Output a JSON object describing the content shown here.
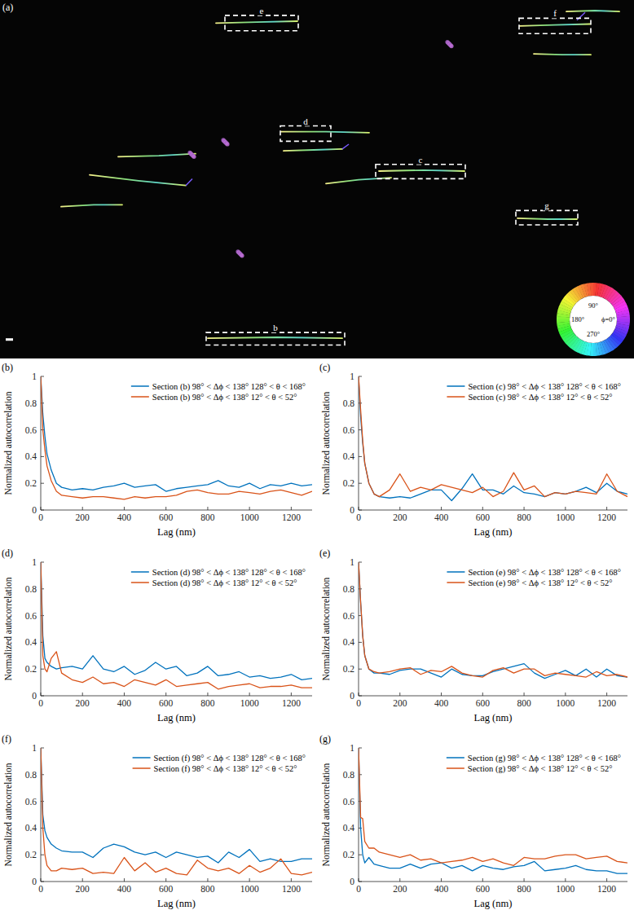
{
  "image_panel": {
    "label": "(a)",
    "boxes": [
      {
        "label": "b"
      },
      {
        "label": "c"
      },
      {
        "label": "d"
      },
      {
        "label": "e"
      },
      {
        "label": "f"
      },
      {
        "label": "g"
      }
    ],
    "wheel_labels": [
      "90°",
      "180°",
      "ϕ=0°",
      "270°"
    ]
  },
  "chart_data": [
    {
      "type": "line",
      "title": "(b)",
      "x_label": "Lag (nm)",
      "y_label": "Normalized autocorrelation",
      "x": [
        0,
        10,
        20,
        30,
        50,
        75,
        100,
        150,
        200,
        250,
        300,
        350,
        400,
        450,
        500,
        550,
        600,
        650,
        700,
        750,
        800,
        850,
        900,
        950,
        1000,
        1050,
        1100,
        1150,
        1200,
        1250,
        1300
      ],
      "series": [
        {
          "name": "Section (b) 98° < Δϕ < 138° 128° < θ < 168°",
          "color": "#0072bd",
          "values": [
            1,
            0.72,
            0.55,
            0.42,
            0.3,
            0.2,
            0.17,
            0.15,
            0.16,
            0.15,
            0.17,
            0.18,
            0.2,
            0.17,
            0.18,
            0.19,
            0.14,
            0.16,
            0.17,
            0.18,
            0.19,
            0.22,
            0.18,
            0.17,
            0.2,
            0.16,
            0.19,
            0.18,
            0.2,
            0.18,
            0.19
          ]
        },
        {
          "name": "Section (b) 98° < Δϕ < 138° 12° < θ < 52°",
          "color": "#d95319",
          "values": [
            1,
            0.6,
            0.45,
            0.33,
            0.22,
            0.14,
            0.11,
            0.1,
            0.09,
            0.1,
            0.1,
            0.09,
            0.08,
            0.1,
            0.09,
            0.1,
            0.1,
            0.11,
            0.14,
            0.15,
            0.13,
            0.12,
            0.12,
            0.14,
            0.13,
            0.12,
            0.14,
            0.15,
            0.13,
            0.11,
            0.14
          ]
        }
      ],
      "xlim": [
        0,
        1300
      ],
      "xticks": [
        0,
        200,
        400,
        600,
        800,
        1000,
        1200
      ],
      "ylim": [
        0,
        1
      ],
      "yticks": [
        0,
        0.2,
        0.4,
        0.6,
        0.8,
        1
      ],
      "legend": "northeast"
    },
    {
      "type": "line",
      "title": "(c)",
      "x_label": "Lag (nm)",
      "y_label": "Normalized autocorrelation",
      "x": [
        0,
        10,
        20,
        30,
        50,
        75,
        100,
        150,
        200,
        250,
        300,
        350,
        400,
        450,
        500,
        550,
        600,
        650,
        700,
        750,
        800,
        850,
        900,
        950,
        1000,
        1050,
        1100,
        1150,
        1200,
        1250,
        1300
      ],
      "series": [
        {
          "name": "Section (c) 98° < Δϕ < 138° 128° < θ < 168°",
          "color": "#0072bd",
          "values": [
            1,
            0.7,
            0.5,
            0.35,
            0.2,
            0.12,
            0.1,
            0.09,
            0.1,
            0.09,
            0.12,
            0.15,
            0.15,
            0.07,
            0.16,
            0.27,
            0.15,
            0.15,
            0.12,
            0.18,
            0.13,
            0.12,
            0.1,
            0.13,
            0.12,
            0.14,
            0.17,
            0.13,
            0.2,
            0.14,
            0.12
          ]
        },
        {
          "name": "Section (c) 98° < Δϕ < 138° 12° < θ < 52°",
          "color": "#d95319",
          "values": [
            1,
            0.75,
            0.52,
            0.35,
            0.2,
            0.12,
            0.1,
            0.15,
            0.27,
            0.14,
            0.17,
            0.15,
            0.19,
            0.17,
            0.15,
            0.13,
            0.17,
            0.1,
            0.14,
            0.28,
            0.15,
            0.18,
            0.1,
            0.13,
            0.12,
            0.14,
            0.13,
            0.12,
            0.27,
            0.14,
            0.1
          ]
        }
      ],
      "xlim": [
        0,
        1300
      ],
      "xticks": [
        0,
        200,
        400,
        600,
        800,
        1000,
        1200
      ],
      "ylim": [
        0,
        1
      ],
      "yticks": [
        0,
        0.2,
        0.4,
        0.6,
        0.8,
        1
      ],
      "legend": "northeast"
    },
    {
      "type": "line",
      "title": "(d)",
      "x_label": "Lag (nm)",
      "y_label": "Normalized autocorrelation",
      "x": [
        0,
        10,
        20,
        30,
        50,
        75,
        100,
        150,
        200,
        250,
        300,
        350,
        400,
        450,
        500,
        550,
        600,
        650,
        700,
        750,
        800,
        850,
        900,
        950,
        1000,
        1050,
        1100,
        1150,
        1200,
        1250,
        1300
      ],
      "series": [
        {
          "name": "Section (d) 98° < Δϕ < 138° 128° < θ < 168°",
          "color": "#0072bd",
          "values": [
            1,
            0.45,
            0.28,
            0.25,
            0.22,
            0.2,
            0.21,
            0.22,
            0.2,
            0.3,
            0.2,
            0.18,
            0.22,
            0.16,
            0.19,
            0.25,
            0.2,
            0.22,
            0.15,
            0.17,
            0.22,
            0.15,
            0.16,
            0.18,
            0.14,
            0.15,
            0.13,
            0.14,
            0.16,
            0.12,
            0.13
          ]
        },
        {
          "name": "Section (d) 98° < Δϕ < 138° 12° < θ < 52°",
          "color": "#d95319",
          "values": [
            1,
            0.3,
            0.2,
            0.18,
            0.28,
            0.33,
            0.17,
            0.12,
            0.1,
            0.14,
            0.09,
            0.1,
            0.07,
            0.12,
            0.1,
            0.08,
            0.12,
            0.07,
            0.08,
            0.09,
            0.1,
            0.05,
            0.07,
            0.08,
            0.09,
            0.06,
            0.07,
            0.07,
            0.08,
            0.06,
            0.06
          ]
        }
      ],
      "xlim": [
        0,
        1300
      ],
      "xticks": [
        0,
        200,
        400,
        600,
        800,
        1000,
        1200
      ],
      "ylim": [
        0,
        1
      ],
      "yticks": [
        0,
        0.2,
        0.4,
        0.6,
        0.8,
        1
      ],
      "legend": "northeast"
    },
    {
      "type": "line",
      "title": "(e)",
      "x_label": "Lag (nm)",
      "y_label": "Normalized autocorrelation",
      "x": [
        0,
        10,
        20,
        30,
        50,
        75,
        100,
        150,
        200,
        250,
        300,
        350,
        400,
        450,
        500,
        550,
        600,
        650,
        700,
        750,
        800,
        850,
        900,
        950,
        1000,
        1050,
        1100,
        1150,
        1200,
        1250,
        1300
      ],
      "series": [
        {
          "name": "Section (e) 98° < Δϕ < 138° 128° < θ < 168°",
          "color": "#0072bd",
          "values": [
            1,
            0.7,
            0.45,
            0.3,
            0.2,
            0.17,
            0.17,
            0.16,
            0.19,
            0.2,
            0.2,
            0.17,
            0.14,
            0.2,
            0.16,
            0.15,
            0.15,
            0.18,
            0.2,
            0.22,
            0.24,
            0.17,
            0.13,
            0.16,
            0.19,
            0.15,
            0.2,
            0.14,
            0.2,
            0.15,
            0.14
          ]
        },
        {
          "name": "Section (e) 98° < Δϕ < 138° 12° < θ < 52°",
          "color": "#d95319",
          "values": [
            1,
            0.7,
            0.45,
            0.3,
            0.2,
            0.18,
            0.17,
            0.18,
            0.2,
            0.21,
            0.16,
            0.19,
            0.18,
            0.22,
            0.17,
            0.15,
            0.14,
            0.19,
            0.21,
            0.17,
            0.2,
            0.2,
            0.15,
            0.17,
            0.16,
            0.15,
            0.14,
            0.18,
            0.15,
            0.16,
            0.14
          ]
        }
      ],
      "xlim": [
        0,
        1300
      ],
      "xticks": [
        0,
        200,
        400,
        600,
        800,
        1000,
        1200
      ],
      "ylim": [
        0,
        1
      ],
      "yticks": [
        0,
        0.2,
        0.4,
        0.6,
        0.8,
        1
      ],
      "legend": "northeast"
    },
    {
      "type": "line",
      "title": "(f)",
      "x_label": "Lag (nm)",
      "y_label": "Normalized autocorrelation",
      "x": [
        0,
        10,
        20,
        30,
        50,
        75,
        100,
        150,
        200,
        250,
        300,
        350,
        400,
        450,
        500,
        550,
        600,
        650,
        700,
        750,
        800,
        850,
        900,
        950,
        1000,
        1050,
        1100,
        1150,
        1200,
        1250,
        1300
      ],
      "series": [
        {
          "name": "Section (f) 98° < Δϕ < 138° 128° < θ < 168°",
          "color": "#0072bd",
          "values": [
            1,
            0.5,
            0.38,
            0.33,
            0.28,
            0.25,
            0.23,
            0.22,
            0.22,
            0.18,
            0.25,
            0.28,
            0.26,
            0.22,
            0.2,
            0.22,
            0.18,
            0.22,
            0.2,
            0.18,
            0.19,
            0.14,
            0.22,
            0.18,
            0.24,
            0.15,
            0.17,
            0.15,
            0.15,
            0.17,
            0.17
          ]
        },
        {
          "name": "Section (f) 98° < Δϕ < 138° 12° < θ < 52°",
          "color": "#d95319",
          "values": [
            1,
            0.4,
            0.2,
            0.12,
            0.08,
            0.08,
            0.1,
            0.09,
            0.1,
            0.06,
            0.07,
            0.06,
            0.18,
            0.08,
            0.14,
            0.07,
            0.1,
            0.06,
            0.05,
            0.16,
            0.1,
            0.08,
            0.1,
            0.06,
            0.12,
            0.07,
            0.1,
            0.17,
            0.06,
            0.05,
            0.07
          ]
        }
      ],
      "xlim": [
        0,
        1300
      ],
      "xticks": [
        0,
        200,
        400,
        600,
        800,
        1000,
        1200
      ],
      "ylim": [
        0,
        1
      ],
      "yticks": [
        0,
        0.2,
        0.4,
        0.6,
        0.8,
        1
      ],
      "legend": "northeast"
    },
    {
      "type": "line",
      "title": "(g)",
      "x_label": "Lag (nm)",
      "y_label": "Normalized autocorrelation",
      "x": [
        0,
        10,
        20,
        30,
        50,
        75,
        100,
        150,
        200,
        250,
        300,
        350,
        400,
        450,
        500,
        550,
        600,
        650,
        700,
        750,
        800,
        850,
        900,
        950,
        1000,
        1050,
        1100,
        1150,
        1200,
        1250,
        1300
      ],
      "series": [
        {
          "name": "Section (g) 98° < Δϕ < 138° 128° < θ < 168°",
          "color": "#0072bd",
          "values": [
            1,
            0.4,
            0.2,
            0.14,
            0.18,
            0.13,
            0.12,
            0.1,
            0.1,
            0.13,
            0.1,
            0.13,
            0.14,
            0.1,
            0.12,
            0.08,
            0.12,
            0.1,
            0.09,
            0.11,
            0.12,
            0.15,
            0.08,
            0.09,
            0.1,
            0.12,
            0.09,
            0.08,
            0.08,
            0.06,
            0.06
          ]
        },
        {
          "name": "Section (g) 98° < Δϕ < 138° 12° < θ < 52°",
          "color": "#d95319",
          "values": [
            1,
            0.48,
            0.47,
            0.3,
            0.25,
            0.25,
            0.22,
            0.2,
            0.18,
            0.2,
            0.16,
            0.17,
            0.14,
            0.15,
            0.16,
            0.18,
            0.15,
            0.17,
            0.14,
            0.12,
            0.18,
            0.17,
            0.17,
            0.19,
            0.2,
            0.2,
            0.17,
            0.18,
            0.19,
            0.15,
            0.14
          ]
        }
      ],
      "xlim": [
        0,
        1300
      ],
      "xticks": [
        0,
        200,
        400,
        600,
        800,
        1000,
        1200
      ],
      "ylim": [
        0,
        1
      ],
      "yticks": [
        0,
        0.2,
        0.4,
        0.6,
        0.8,
        1
      ],
      "legend": "northeast"
    }
  ]
}
